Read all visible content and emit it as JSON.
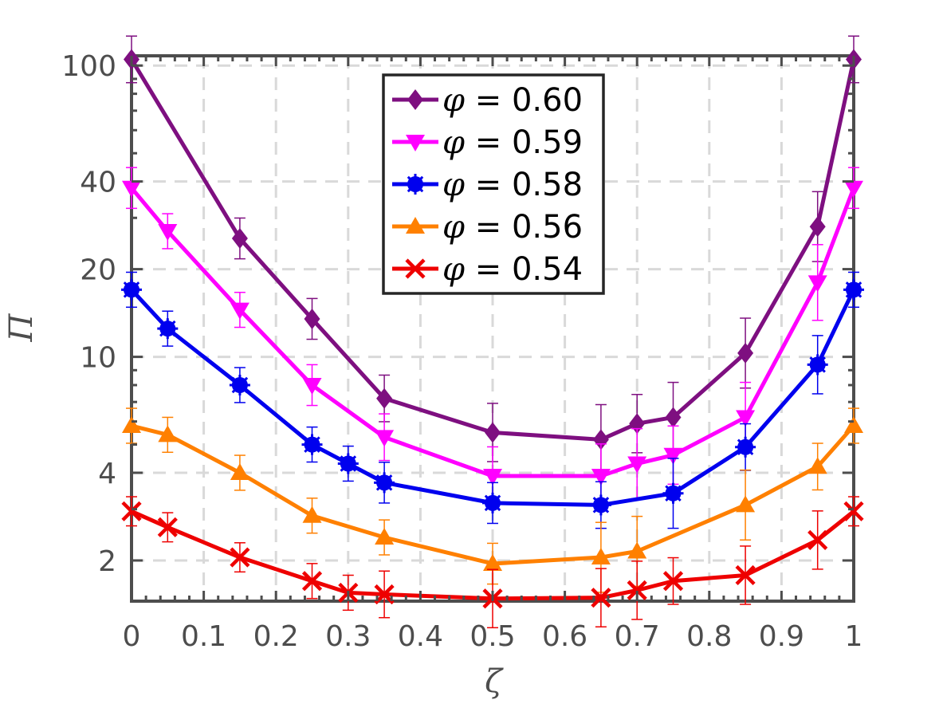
{
  "chart_data": {
    "type": "line",
    "title": "",
    "xlabel": "ζ",
    "ylabel": "Π",
    "xlim": [
      0,
      1
    ],
    "ylim": [
      1.45,
      108
    ],
    "yscale": "log",
    "grid": true,
    "legend_position": "top-center",
    "x_ticks": [
      0,
      0.1,
      0.2,
      0.3,
      0.4,
      0.5,
      0.6,
      0.7,
      0.8,
      0.9,
      1
    ],
    "x_tick_labels": [
      "0",
      "0.1",
      "0.2",
      "0.3",
      "0.4",
      "0.5",
      "0.6",
      "0.7",
      "0.8",
      "0.9",
      "1"
    ],
    "y_ticks": [
      2,
      4,
      10,
      20,
      40,
      100
    ],
    "y_tick_labels": [
      "2",
      "4",
      "10",
      "20",
      "40",
      "100"
    ],
    "series": [
      {
        "name": "φ = 0.60",
        "phi_symbol": "φ",
        "phi_value": " = 0.60",
        "color": "#7e0f80",
        "marker": "diamond",
        "x": [
          0,
          0.15,
          0.25,
          0.35,
          0.5,
          0.65,
          0.7,
          0.75,
          0.85,
          0.95,
          1
        ],
        "y": [
          105,
          25.5,
          13.5,
          7.2,
          5.5,
          5.2,
          5.9,
          6.2,
          10.3,
          28,
          105
        ],
        "err": [
          0.08,
          0.07,
          0.07,
          0.08,
          0.1,
          0.12,
          0.1,
          0.12,
          0.12,
          0.12,
          0.08
        ]
      },
      {
        "name": "φ = 0.59",
        "phi_symbol": "φ",
        "phi_value": " = 0.59",
        "color": "#ff00ff",
        "marker": "triangle-down",
        "x": [
          0,
          0.05,
          0.15,
          0.25,
          0.35,
          0.5,
          0.65,
          0.7,
          0.75,
          0.85,
          0.95,
          1
        ],
        "y": [
          38,
          27,
          14.5,
          8.0,
          5.3,
          3.9,
          3.9,
          4.3,
          4.6,
          6.2,
          18,
          38
        ],
        "err": [
          0.07,
          0.06,
          0.06,
          0.07,
          0.08,
          0.1,
          0.11,
          0.12,
          0.1,
          0.12,
          0.13,
          0.07
        ]
      },
      {
        "name": "φ = 0.58",
        "phi_symbol": "φ",
        "phi_value": " = 0.58",
        "color": "#0000ee",
        "marker": "star",
        "x": [
          0,
          0.05,
          0.15,
          0.25,
          0.3,
          0.35,
          0.5,
          0.65,
          0.75,
          0.85,
          0.95,
          1
        ],
        "y": [
          17,
          12.5,
          8.0,
          5.0,
          4.3,
          3.7,
          3.15,
          3.1,
          3.4,
          4.9,
          9.4,
          17
        ],
        "err": [
          0.06,
          0.06,
          0.06,
          0.06,
          0.06,
          0.07,
          0.07,
          0.08,
          0.12,
          0.08,
          0.1,
          0.06
        ]
      },
      {
        "name": "φ = 0.56",
        "phi_symbol": "φ",
        "phi_value": " = 0.56",
        "color": "#ff8000",
        "marker": "triangle-up",
        "x": [
          0,
          0.05,
          0.15,
          0.25,
          0.35,
          0.5,
          0.65,
          0.7,
          0.85,
          0.95,
          1
        ],
        "y": [
          5.8,
          5.4,
          4.0,
          2.85,
          2.4,
          1.95,
          2.05,
          2.15,
          3.1,
          4.2,
          5.8
        ],
        "err": [
          0.06,
          0.06,
          0.06,
          0.06,
          0.06,
          0.07,
          0.12,
          0.12,
          0.12,
          0.08,
          0.06
        ]
      },
      {
        "name": "φ = 0.54",
        "phi_symbol": "φ",
        "phi_value": " = 0.54",
        "color": "#ee0000",
        "marker": "x",
        "x": [
          0,
          0.05,
          0.15,
          0.25,
          0.3,
          0.35,
          0.5,
          0.65,
          0.7,
          0.75,
          0.85,
          0.95,
          1
        ],
        "y": [
          2.95,
          2.6,
          2.05,
          1.7,
          1.55,
          1.53,
          1.48,
          1.49,
          1.58,
          1.7,
          1.78,
          2.35,
          2.95
        ],
        "err": [
          0.05,
          0.05,
          0.05,
          0.06,
          0.06,
          0.08,
          0.1,
          0.1,
          0.1,
          0.08,
          0.1,
          0.1,
          0.05
        ]
      }
    ]
  }
}
